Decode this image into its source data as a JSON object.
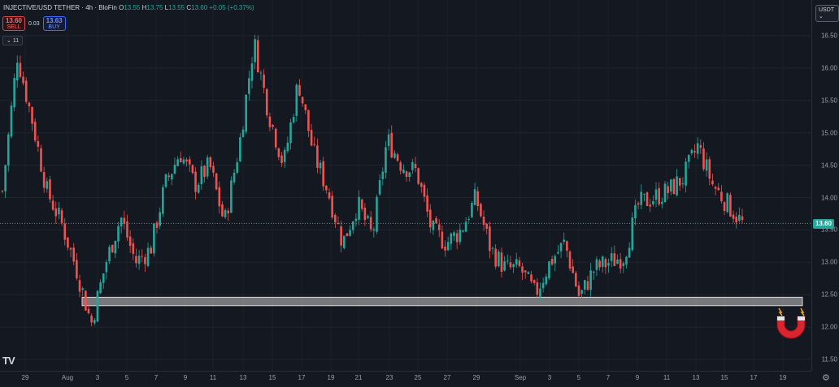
{
  "header": {
    "symbol": "INJECTIVE/USD TETHER · 4h · BloFin",
    "ohlc": [
      {
        "k": "O",
        "v": "13.55"
      },
      {
        "k": "H",
        "v": "13.75"
      },
      {
        "k": "L",
        "v": "13.55"
      },
      {
        "k": "C",
        "v": "13.60"
      }
    ],
    "change": "+0.05 (+0.37%)"
  },
  "trade": {
    "sell_price": "13.60",
    "sell_label": "SELL",
    "spread": "0.03",
    "buy_price": "13.63",
    "buy_label": "BUY"
  },
  "indicators_button": "11",
  "currency": "USDT",
  "last_price": "13.60",
  "colors": {
    "up": "#26a69a",
    "down": "#ef5350",
    "background": "#141821",
    "zone": "#c8c8c8"
  },
  "icons": [
    "tradingview-logo",
    "magnet-icon",
    "gear-icon",
    "chevron-down-icon"
  ],
  "chart_data": {
    "type": "candlestick",
    "title": "",
    "xlabel": "",
    "ylabel": "",
    "y_ticks": [
      "16.50",
      "16.00",
      "15.50",
      "15.00",
      "14.50",
      "14.00",
      "13.50",
      "13.00",
      "12.50",
      "12.00",
      "11.50"
    ],
    "x_ticks": [
      "29",
      "Aug",
      "3",
      "5",
      "7",
      "9",
      "11",
      "13",
      "15",
      "17",
      "19",
      "21",
      "23",
      "25",
      "27",
      "29",
      "Sep",
      "3",
      "5",
      "7",
      "9",
      "11",
      "13",
      "15",
      "17",
      "19",
      "21"
    ],
    "ylim": [
      11.5,
      16.5
    ],
    "grid": true,
    "support_zone": [
      12.33,
      12.46
    ],
    "last_price_line": 13.6,
    "close_path": [
      [
        "Jul 29",
        14.1
      ],
      [
        "Jul 29 12h",
        16.2
      ],
      [
        "Jul 30",
        15.2
      ],
      [
        "Jul 31",
        14.1
      ],
      [
        "Aug 1",
        13.6
      ],
      [
        "Aug 2",
        12.9
      ],
      [
        "Aug 3",
        12.05
      ],
      [
        "Aug 4",
        13.0
      ],
      [
        "Aug 5",
        13.7
      ],
      [
        "Aug 6",
        13.0
      ],
      [
        "Aug 7",
        13.2
      ],
      [
        "Aug 8",
        14.2
      ],
      [
        "Aug 9",
        14.7
      ],
      [
        "Aug 10",
        14.2
      ],
      [
        "Aug 11",
        14.5
      ],
      [
        "Aug 12",
        13.6
      ],
      [
        "Aug 13",
        14.8
      ],
      [
        "Aug 14",
        16.4
      ],
      [
        "Aug 15",
        15.3
      ],
      [
        "Aug 16",
        14.5
      ],
      [
        "Aug 17",
        15.8
      ],
      [
        "Aug 18",
        14.7
      ],
      [
        "Aug 19",
        14.1
      ],
      [
        "Aug 20",
        13.3
      ],
      [
        "Aug 21",
        13.9
      ],
      [
        "Aug 22",
        13.4
      ],
      [
        "Aug 23",
        14.9
      ],
      [
        "Aug 24",
        14.5
      ],
      [
        "Aug 25",
        14.4
      ],
      [
        "Aug 26",
        13.5
      ],
      [
        "Aug 27",
        13.3
      ],
      [
        "Aug 28",
        13.5
      ],
      [
        "Aug 29",
        14.0
      ],
      [
        "Aug 30",
        13.2
      ],
      [
        "Aug 31",
        12.9
      ],
      [
        "Sep 1",
        12.9
      ],
      [
        "Sep 2",
        12.5
      ],
      [
        "Sep 3",
        13.0
      ],
      [
        "Sep 4",
        13.3
      ],
      [
        "Sep 5",
        12.45
      ],
      [
        "Sep 6",
        12.9
      ],
      [
        "Sep 7",
        13.0
      ],
      [
        "Sep 8",
        13.1
      ],
      [
        "Sep 9",
        13.9
      ],
      [
        "Sep 10",
        14.0
      ],
      [
        "Sep 11",
        14.1
      ],
      [
        "Sep 12",
        14.3
      ],
      [
        "Sep 13",
        14.8
      ],
      [
        "Sep 14",
        14.2
      ],
      [
        "Sep 15",
        13.9
      ],
      [
        "Sep 16",
        13.6
      ]
    ]
  }
}
